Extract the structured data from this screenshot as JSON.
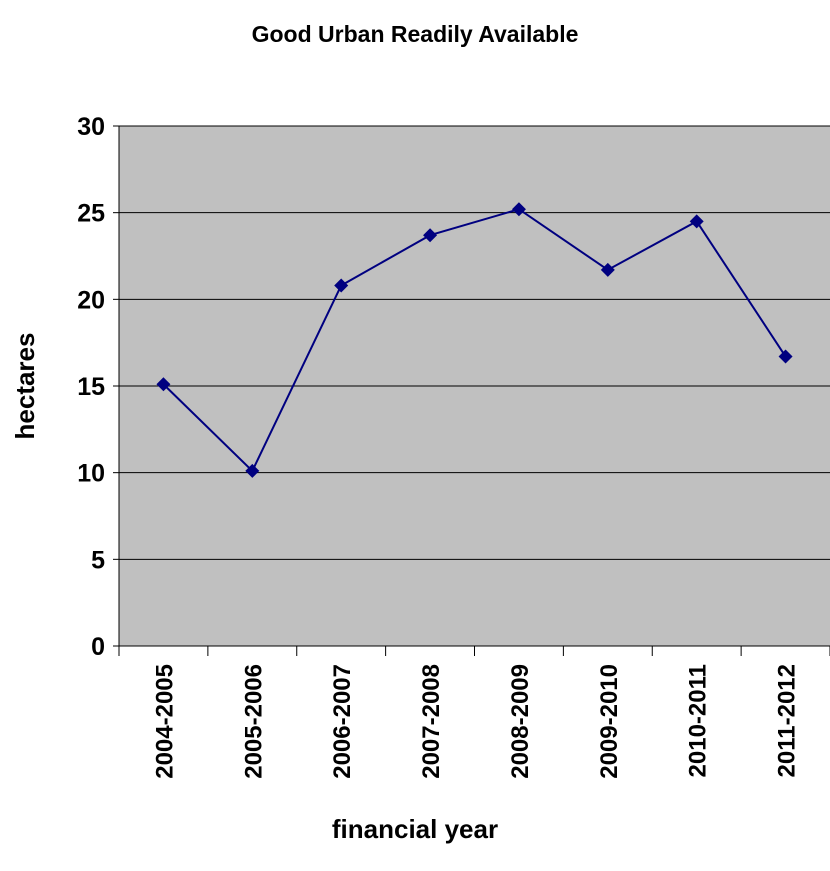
{
  "chart_data": {
    "type": "line",
    "title": "Good Urban Readily Available",
    "x_label": "financial year",
    "y_label": "hectares",
    "categories": [
      "2004-2005",
      "2005-2006",
      "2006-2007",
      "2007-2008",
      "2008-2009",
      "2009-2010",
      "2010-2011",
      "2011-2012"
    ],
    "series": [
      {
        "name": "Good Urban Readily Available",
        "color": "#000080",
        "values": [
          15.1,
          10.1,
          20.8,
          23.7,
          25.2,
          21.7,
          24.5,
          16.7
        ]
      }
    ],
    "ylim": [
      0,
      30
    ],
    "yticks": [
      0,
      5,
      10,
      15,
      20,
      25,
      30
    ],
    "grid": true
  }
}
